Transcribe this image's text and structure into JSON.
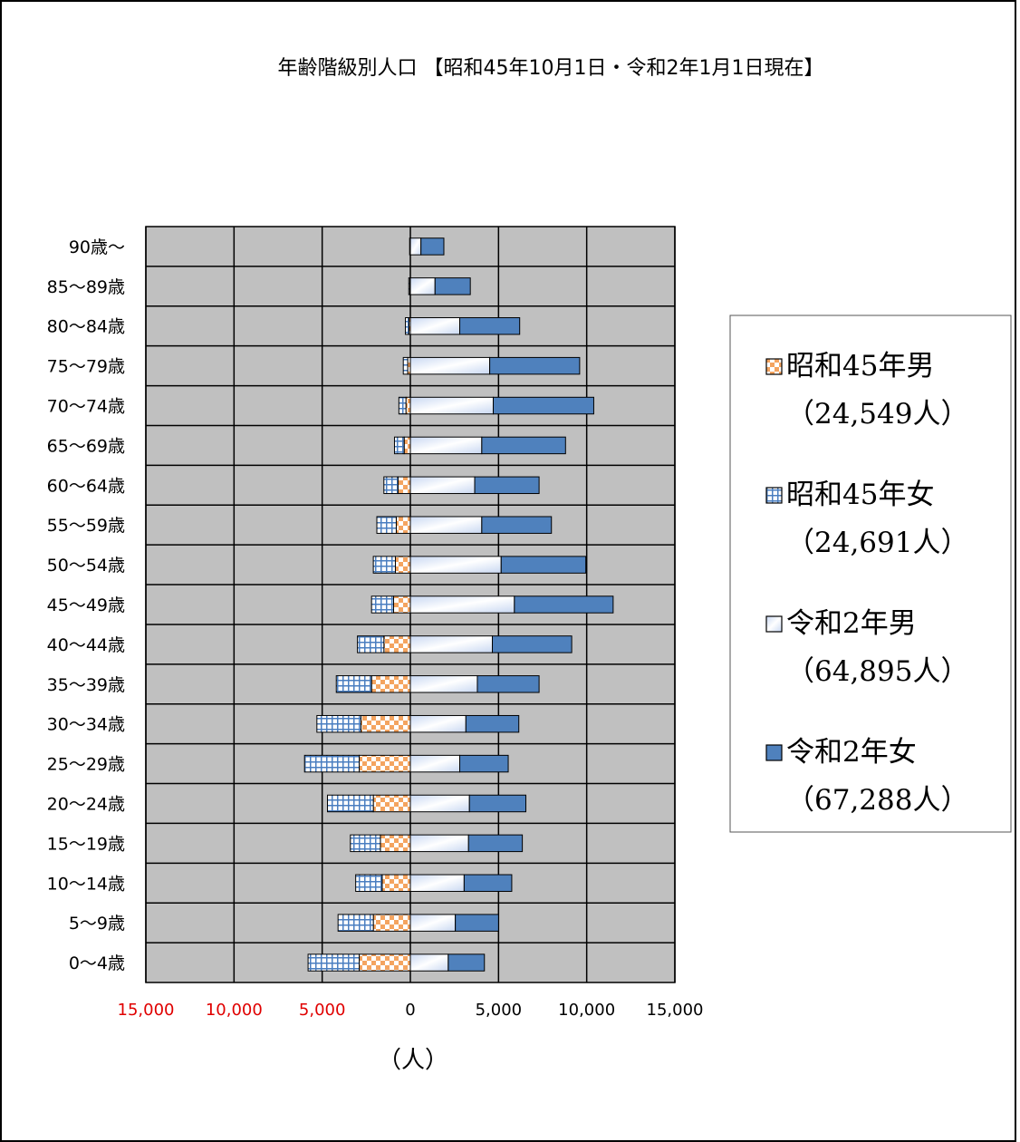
{
  "chart_data": {
    "type": "bar",
    "orientation": "horizontal",
    "layout": "population-pyramid",
    "title": "年齢階級別人口 【昭和45年10月1日・令和2年1月1日現在】",
    "xlabel": "（人）",
    "categories": [
      "90歳～",
      "85～89歳",
      "80～84歳",
      "75～79歳",
      "70～74歳",
      "65～69歳",
      "60～64歳",
      "55～59歳",
      "50～54歳",
      "45～49歳",
      "40～44歳",
      "35～39歳",
      "30～34歳",
      "25～29歳",
      "20～24歳",
      "15～19歳",
      "10～14歳",
      "5～9歳",
      "0～4歳"
    ],
    "xticks": [
      {
        "label": "15,000",
        "value": -15000,
        "color": "#e00000"
      },
      {
        "label": "10,000",
        "value": -10000,
        "color": "#e00000"
      },
      {
        "label": "5,000",
        "value": -5000,
        "color": "#e00000"
      },
      {
        "label": "0",
        "value": 0,
        "color": "#000000"
      },
      {
        "label": "5,000",
        "value": 5000,
        "color": "#000000"
      },
      {
        "label": "10,000",
        "value": 10000,
        "color": "#000000"
      },
      {
        "label": "15,000",
        "value": 15000,
        "color": "#000000"
      }
    ],
    "xlim": [
      -15000,
      15000
    ],
    "grid": true,
    "legend_position": "right",
    "series": [
      {
        "name": "昭和45年男",
        "total": "（24,549人）",
        "side": "left",
        "color": "#f4a460",
        "pattern": "checker",
        "values": [
          10,
          30,
          80,
          150,
          250,
          350,
          700,
          800,
          850,
          950,
          1500,
          2200,
          2800,
          2900,
          2100,
          1700,
          1600,
          2100,
          2900
        ]
      },
      {
        "name": "昭和45年女",
        "total": "（24,691人）",
        "side": "left",
        "color": "#4a7ec0",
        "pattern": "grid",
        "values": [
          30,
          60,
          200,
          250,
          400,
          550,
          800,
          1100,
          1250,
          1250,
          1500,
          2000,
          2500,
          3100,
          2600,
          1700,
          1500,
          2000,
          2900
        ]
      },
      {
        "name": "令和2年男",
        "total": "（64,895人）",
        "side": "right",
        "color": "#dbe6f7",
        "pattern": "gradient",
        "values": [
          600,
          1400,
          2800,
          4500,
          4700,
          4050,
          3650,
          4050,
          5150,
          5900,
          4650,
          3800,
          3150,
          2800,
          3350,
          3300,
          3050,
          2550,
          2150
        ]
      },
      {
        "name": "令和2年女",
        "total": "（67,288人）",
        "side": "right",
        "color": "#4f81bd",
        "pattern": "solid",
        "values": [
          1300,
          2000,
          3400,
          5100,
          5700,
          4750,
          3650,
          3950,
          4800,
          5600,
          4500,
          3500,
          3000,
          2750,
          3200,
          3050,
          2700,
          2450,
          2050
        ]
      }
    ]
  }
}
